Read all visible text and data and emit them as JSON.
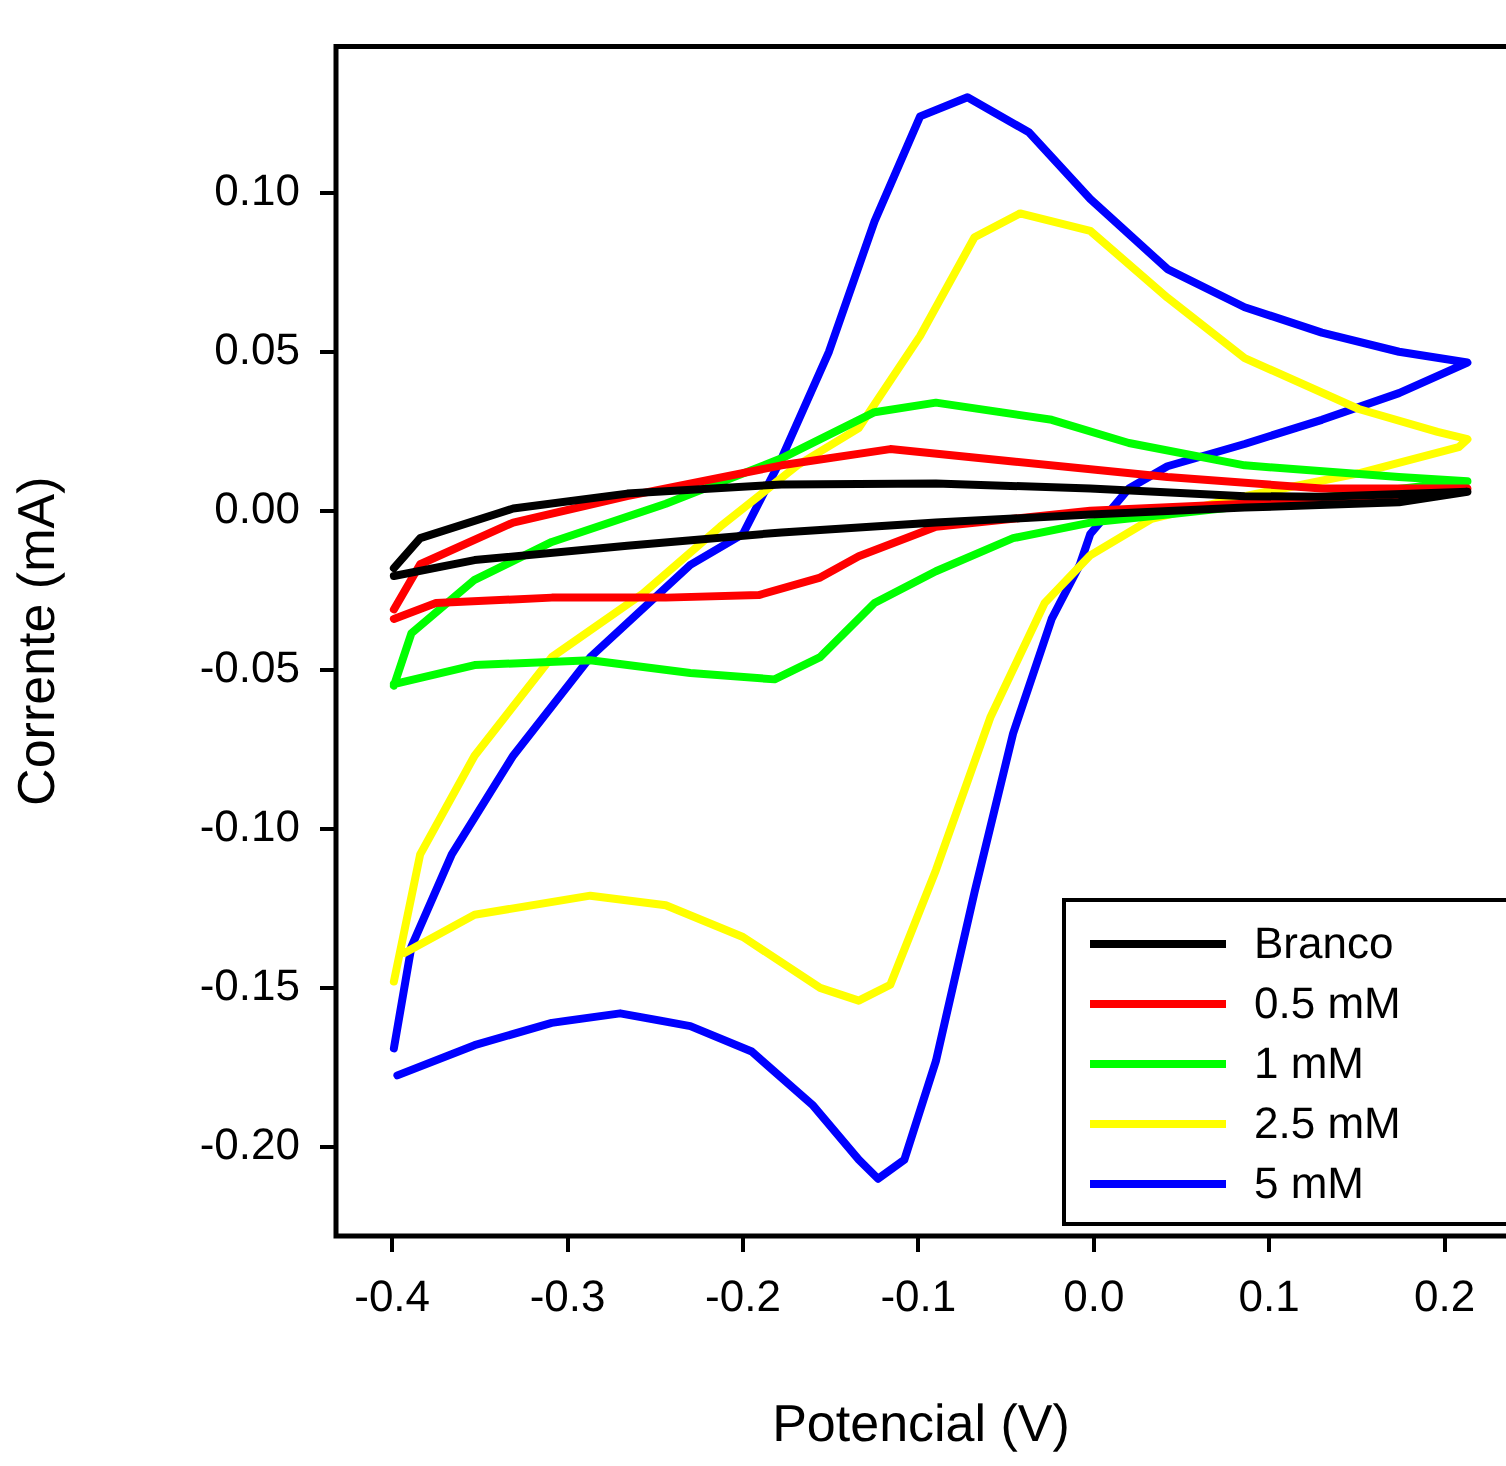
{
  "chart_data": {
    "type": "line",
    "xlabel": "Potencial (V)",
    "ylabel": "Corrente (mA)",
    "xlim": [
      -0.432,
      0.235
    ],
    "ylim": [
      -0.228,
      0.146
    ],
    "xticks": [
      {
        "value": -0.4,
        "label": "-0.4"
      },
      {
        "value": -0.3,
        "label": "-0.3"
      },
      {
        "value": -0.2,
        "label": "-0.2"
      },
      {
        "value": -0.1,
        "label": "-0.1"
      },
      {
        "value": 0,
        "label": "0.0"
      },
      {
        "value": 0.1,
        "label": "0.1"
      },
      {
        "value": 0.2,
        "label": "0.2"
      }
    ],
    "yticks": [
      {
        "value": -0.2,
        "label": "-0.20"
      },
      {
        "value": -0.15,
        "label": "-0.15"
      },
      {
        "value": -0.1,
        "label": "-0.10"
      },
      {
        "value": -0.05,
        "label": "-0.05"
      },
      {
        "value": 0,
        "label": "0.00"
      },
      {
        "value": 0.05,
        "label": "0.05"
      },
      {
        "value": 0.1,
        "label": "0.10"
      }
    ],
    "grid": false,
    "legend": "bottom right",
    "marker": "none",
    "line_style": "solid",
    "series": [
      {
        "name": "Branco",
        "color": "#000000",
        "x": [
          -0.399,
          -0.353,
          -0.266,
          -0.178,
          -0.09,
          -0.002,
          0.086,
          0.174,
          0.213,
          0.13,
          0.086,
          -0.002,
          -0.09,
          -0.178,
          -0.266,
          -0.331,
          -0.384,
          -0.399
        ],
        "values": [
          -0.0205,
          -0.0155,
          -0.011,
          -0.0068,
          -0.0037,
          -0.0012,
          0.001,
          0.0027,
          0.006,
          0.0044,
          0.0046,
          0.007,
          0.0086,
          0.0083,
          0.0054,
          0.0007,
          -0.0086,
          -0.018
        ]
      },
      {
        "name": "0.5 mM",
        "color": "#ff0000",
        "x": [
          -0.399,
          -0.375,
          -0.309,
          -0.244,
          -0.191,
          -0.156,
          -0.134,
          -0.09,
          -0.002,
          0.086,
          0.174,
          0.213,
          0.13,
          0.042,
          -0.046,
          -0.116,
          -0.178,
          -0.266,
          -0.331,
          -0.384,
          -0.399
        ],
        "values": [
          -0.034,
          -0.029,
          -0.0273,
          -0.0273,
          -0.0265,
          -0.021,
          -0.0143,
          -0.005,
          0,
          0.0022,
          0.0043,
          0.007,
          0.007,
          0.0106,
          0.0155,
          0.0194,
          0.0143,
          0.0046,
          -0.0037,
          -0.0168,
          -0.031
        ]
      },
      {
        "name": "1 mM",
        "color": "#00ff00",
        "x": [
          -0.399,
          -0.353,
          -0.287,
          -0.23,
          -0.182,
          -0.156,
          -0.125,
          -0.09,
          -0.046,
          -0.002,
          0.042,
          0.213,
          0.174,
          0.086,
          0.02,
          -0.024,
          -0.09,
          -0.125,
          -0.178,
          -0.244,
          -0.309,
          -0.353,
          -0.389,
          -0.399
        ],
        "values": [
          -0.0545,
          -0.0485,
          -0.047,
          -0.051,
          -0.053,
          -0.046,
          -0.029,
          -0.019,
          -0.0086,
          -0.0037,
          -0.0012,
          0.0093,
          0.0106,
          0.0143,
          0.0213,
          0.0286,
          0.034,
          0.031,
          0.0165,
          0.0022,
          -0.0098,
          -0.0217,
          -0.0385,
          -0.055
        ]
      },
      {
        "name": "2.5 mM",
        "color": "#ffff00",
        "x": [
          -0.393,
          -0.353,
          -0.287,
          -0.244,
          -0.2,
          -0.156,
          -0.134,
          -0.116,
          -0.09,
          -0.059,
          -0.028,
          -0.002,
          0.033,
          0.086,
          0.151,
          0.208,
          0.213,
          0.196,
          0.151,
          0.086,
          0.042,
          -0.002,
          -0.042,
          -0.068,
          -0.099,
          -0.134,
          -0.169,
          -0.213,
          -0.257,
          -0.309,
          -0.353,
          -0.384,
          -0.399
        ],
        "values": [
          -0.139,
          -0.127,
          -0.121,
          -0.124,
          -0.134,
          -0.15,
          -0.154,
          -0.149,
          -0.113,
          -0.065,
          -0.029,
          -0.014,
          -0.0025,
          0.0046,
          0.0118,
          0.02,
          0.0225,
          0.0248,
          0.032,
          0.048,
          0.067,
          0.088,
          0.0935,
          0.086,
          0.055,
          0.026,
          0.0143,
          -0.005,
          -0.026,
          -0.046,
          -0.077,
          -0.108,
          -0.148
        ]
      },
      {
        "name": "5 mM",
        "color": "#0000ff",
        "x": [
          -0.397,
          -0.353,
          -0.309,
          -0.27,
          -0.23,
          -0.195,
          -0.16,
          -0.134,
          -0.123,
          -0.108,
          -0.09,
          -0.068,
          -0.046,
          -0.024,
          -0.008,
          -0.002,
          0.02,
          0.042,
          0.086,
          0.13,
          0.174,
          0.213,
          0.174,
          0.13,
          0.086,
          0.042,
          -0.002,
          -0.037,
          -0.072,
          -0.099,
          -0.125,
          -0.151,
          -0.178,
          -0.2,
          -0.23,
          -0.287,
          -0.331,
          -0.366,
          -0.389,
          -0.399
        ],
        "values": [
          -0.1775,
          -0.168,
          -0.161,
          -0.158,
          -0.162,
          -0.17,
          -0.187,
          -0.204,
          -0.21,
          -0.204,
          -0.173,
          -0.12,
          -0.07,
          -0.034,
          -0.017,
          -0.0073,
          0.007,
          0.014,
          0.021,
          0.0286,
          0.037,
          0.0466,
          0.05,
          0.056,
          0.064,
          0.076,
          0.098,
          0.119,
          0.13,
          0.124,
          0.091,
          0.05,
          0.0165,
          -0.0073,
          -0.017,
          -0.046,
          -0.077,
          -0.108,
          -0.137,
          -0.169
        ]
      }
    ]
  }
}
